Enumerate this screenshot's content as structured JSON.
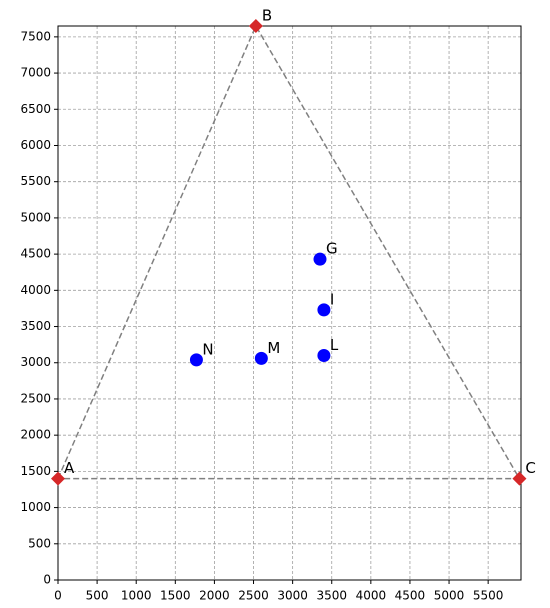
{
  "chart_data": {
    "type": "scatter",
    "xlim": [
      0,
      5920
    ],
    "ylim": [
      0,
      7650
    ],
    "xticks": [
      0,
      500,
      1000,
      1500,
      2000,
      2500,
      3000,
      3500,
      4000,
      4500,
      5000,
      5500
    ],
    "yticks": [
      0,
      500,
      1000,
      1500,
      2000,
      2500,
      3000,
      3500,
      4000,
      4500,
      5000,
      5500,
      6000,
      6500,
      7000,
      7500
    ],
    "grid": true,
    "series": [
      {
        "color": "#d62728",
        "marker": "diamond",
        "outline": true,
        "labels": [
          "A",
          "B",
          "C"
        ],
        "x": [
          0,
          2530,
          5900
        ],
        "y": [
          1400,
          7650,
          1400
        ]
      },
      {
        "color": "#0000ff",
        "marker": "circle",
        "outline": false,
        "labels": [
          "G",
          "I",
          "L",
          "M",
          "N"
        ],
        "x": [
          3350,
          3400,
          3400,
          2600,
          1770
        ],
        "y": [
          4430,
          3730,
          3100,
          3060,
          3040
        ]
      }
    ]
  }
}
